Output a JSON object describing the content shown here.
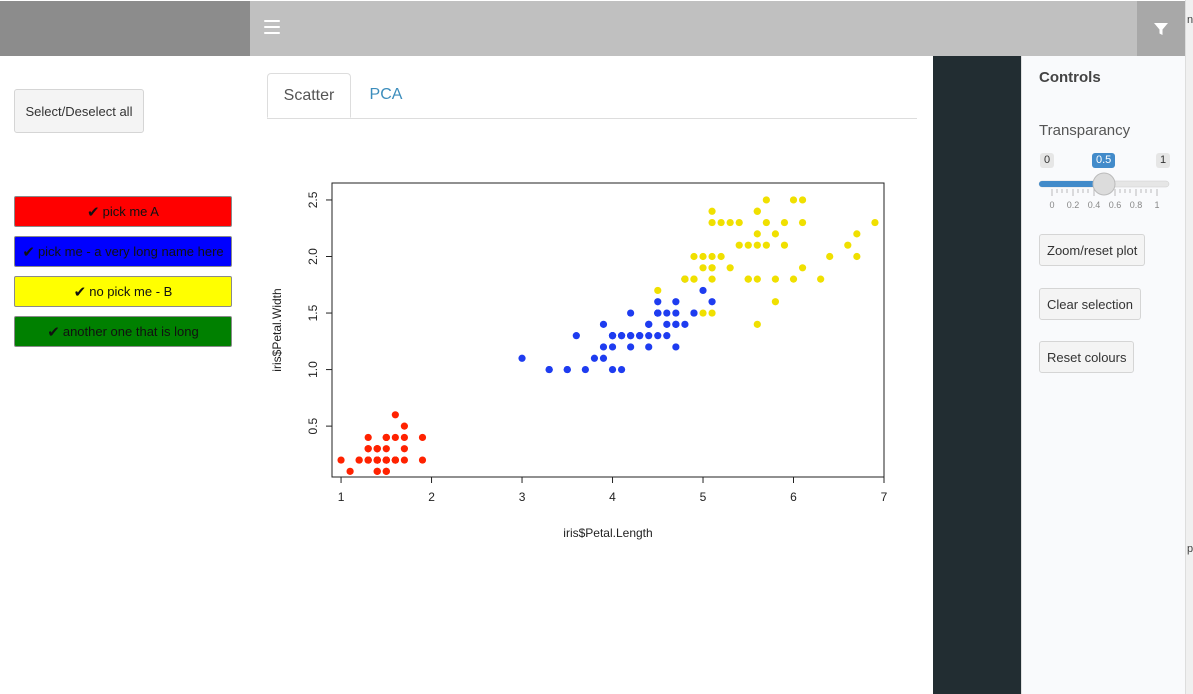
{
  "header": {
    "menu_icon": "hamburger-icon",
    "filter_icon": "filter-icon"
  },
  "sidebar": {
    "select_all_label": "Select/Deselect all",
    "picks": [
      {
        "label": "pick me A",
        "color": "#ff0000"
      },
      {
        "label": "pick me - a very long name here",
        "color": "#0000ff"
      },
      {
        "label": "no pick me - B",
        "color": "#ffff00"
      },
      {
        "label": "another one that is long",
        "color": "#008000"
      }
    ],
    "check_glyph": "✔"
  },
  "tabs": [
    {
      "label": "Scatter",
      "active": true
    },
    {
      "label": "PCA",
      "active": false
    }
  ],
  "controls": {
    "title": "Controls",
    "transparency_label": "Transparancy",
    "slider": {
      "min": "0",
      "max": "1",
      "value": "0.5",
      "ticks": [
        "0",
        "0.2",
        "0.4",
        "0.6",
        "0.8",
        "1"
      ]
    },
    "buttons": [
      "Zoom/reset plot",
      "Clear selection",
      "Reset colours"
    ]
  },
  "right_edge_text": [
    "n",
    "pt"
  ],
  "chart_data": {
    "type": "scatter",
    "xlabel": "iris$Petal.Length",
    "ylabel": "iris$Petal.Width",
    "xlim": [
      0.9,
      7.0
    ],
    "ylim": [
      0.05,
      2.65
    ],
    "xticks": [
      "1",
      "2",
      "3",
      "4",
      "5",
      "6",
      "7"
    ],
    "yticks": [
      "0.5",
      "1.0",
      "1.5",
      "2.0",
      "2.5"
    ],
    "series": [
      {
        "color": "#ff2200",
        "points": [
          [
            1.4,
            0.2
          ],
          [
            1.4,
            0.2
          ],
          [
            1.3,
            0.2
          ],
          [
            1.5,
            0.2
          ],
          [
            1.4,
            0.2
          ],
          [
            1.7,
            0.4
          ],
          [
            1.4,
            0.3
          ],
          [
            1.5,
            0.2
          ],
          [
            1.4,
            0.2
          ],
          [
            1.5,
            0.1
          ],
          [
            1.5,
            0.2
          ],
          [
            1.6,
            0.2
          ],
          [
            1.4,
            0.1
          ],
          [
            1.1,
            0.1
          ],
          [
            1.2,
            0.2
          ],
          [
            1.5,
            0.4
          ],
          [
            1.3,
            0.4
          ],
          [
            1.4,
            0.3
          ],
          [
            1.7,
            0.3
          ],
          [
            1.5,
            0.3
          ],
          [
            1.7,
            0.2
          ],
          [
            1.5,
            0.4
          ],
          [
            1.0,
            0.2
          ],
          [
            1.7,
            0.5
          ],
          [
            1.9,
            0.2
          ],
          [
            1.6,
            0.2
          ],
          [
            1.6,
            0.4
          ],
          [
            1.5,
            0.2
          ],
          [
            1.4,
            0.2
          ],
          [
            1.6,
            0.2
          ],
          [
            1.6,
            0.2
          ],
          [
            1.5,
            0.4
          ],
          [
            1.5,
            0.1
          ],
          [
            1.4,
            0.2
          ],
          [
            1.5,
            0.2
          ],
          [
            1.2,
            0.2
          ],
          [
            1.3,
            0.2
          ],
          [
            1.4,
            0.1
          ],
          [
            1.3,
            0.2
          ],
          [
            1.5,
            0.2
          ],
          [
            1.3,
            0.3
          ],
          [
            1.3,
            0.3
          ],
          [
            1.3,
            0.2
          ],
          [
            1.6,
            0.6
          ],
          [
            1.9,
            0.4
          ],
          [
            1.4,
            0.3
          ],
          [
            1.6,
            0.2
          ],
          [
            1.4,
            0.2
          ],
          [
            1.5,
            0.2
          ],
          [
            1.4,
            0.2
          ]
        ]
      },
      {
        "color": "#1e3cf0",
        "points": [
          [
            4.7,
            1.4
          ],
          [
            4.5,
            1.5
          ],
          [
            4.9,
            1.5
          ],
          [
            4.0,
            1.3
          ],
          [
            4.6,
            1.5
          ],
          [
            4.5,
            1.3
          ],
          [
            4.7,
            1.6
          ],
          [
            3.3,
            1.0
          ],
          [
            4.6,
            1.3
          ],
          [
            3.9,
            1.4
          ],
          [
            3.5,
            1.0
          ],
          [
            4.2,
            1.5
          ],
          [
            4.0,
            1.0
          ],
          [
            4.7,
            1.4
          ],
          [
            3.6,
            1.3
          ],
          [
            4.4,
            1.4
          ],
          [
            4.5,
            1.5
          ],
          [
            4.1,
            1.0
          ],
          [
            4.5,
            1.5
          ],
          [
            3.9,
            1.1
          ],
          [
            4.8,
            1.8
          ],
          [
            4.0,
            1.3
          ],
          [
            4.9,
            1.5
          ],
          [
            4.7,
            1.2
          ],
          [
            4.3,
            1.3
          ],
          [
            4.4,
            1.4
          ],
          [
            4.8,
            1.4
          ],
          [
            5.0,
            1.7
          ],
          [
            4.5,
            1.5
          ],
          [
            3.5,
            1.0
          ],
          [
            3.8,
            1.1
          ],
          [
            3.7,
            1.0
          ],
          [
            3.9,
            1.2
          ],
          [
            5.1,
            1.6
          ],
          [
            4.5,
            1.5
          ],
          [
            4.5,
            1.6
          ],
          [
            4.7,
            1.5
          ],
          [
            4.4,
            1.3
          ],
          [
            4.1,
            1.3
          ],
          [
            4.0,
            1.3
          ],
          [
            4.4,
            1.2
          ],
          [
            4.6,
            1.4
          ],
          [
            4.0,
            1.2
          ],
          [
            3.3,
            1.0
          ],
          [
            4.2,
            1.3
          ],
          [
            4.2,
            1.2
          ],
          [
            4.2,
            1.3
          ],
          [
            4.3,
            1.3
          ],
          [
            3.0,
            1.1
          ],
          [
            4.1,
            1.3
          ]
        ]
      },
      {
        "color": "#f0e000",
        "points": [
          [
            6.0,
            2.5
          ],
          [
            5.1,
            1.9
          ],
          [
            5.9,
            2.1
          ],
          [
            5.6,
            1.8
          ],
          [
            5.8,
            2.2
          ],
          [
            6.6,
            2.1
          ],
          [
            4.5,
            1.7
          ],
          [
            6.3,
            1.8
          ],
          [
            5.8,
            1.8
          ],
          [
            6.1,
            2.5
          ],
          [
            5.1,
            2.0
          ],
          [
            5.3,
            1.9
          ],
          [
            5.5,
            2.1
          ],
          [
            5.0,
            2.0
          ],
          [
            5.1,
            2.4
          ],
          [
            5.3,
            2.3
          ],
          [
            5.5,
            1.8
          ],
          [
            6.7,
            2.2
          ],
          [
            6.9,
            2.3
          ],
          [
            5.0,
            1.5
          ],
          [
            5.7,
            2.3
          ],
          [
            4.9,
            2.0
          ],
          [
            6.7,
            2.0
          ],
          [
            4.9,
            1.8
          ],
          [
            5.7,
            2.1
          ],
          [
            6.0,
            1.8
          ],
          [
            4.8,
            1.8
          ],
          [
            4.9,
            1.8
          ],
          [
            5.6,
            2.1
          ],
          [
            5.8,
            1.6
          ],
          [
            6.1,
            1.9
          ],
          [
            6.4,
            2.0
          ],
          [
            5.6,
            2.2
          ],
          [
            5.1,
            1.5
          ],
          [
            5.6,
            1.4
          ],
          [
            6.1,
            2.3
          ],
          [
            5.6,
            2.4
          ],
          [
            5.5,
            1.8
          ],
          [
            4.8,
            1.8
          ],
          [
            5.4,
            2.1
          ],
          [
            5.6,
            2.4
          ],
          [
            5.1,
            2.3
          ],
          [
            5.1,
            1.9
          ],
          [
            5.9,
            2.3
          ],
          [
            5.7,
            2.5
          ],
          [
            5.2,
            2.3
          ],
          [
            5.0,
            1.9
          ],
          [
            5.2,
            2.0
          ],
          [
            5.4,
            2.3
          ],
          [
            5.1,
            1.8
          ]
        ]
      }
    ]
  }
}
